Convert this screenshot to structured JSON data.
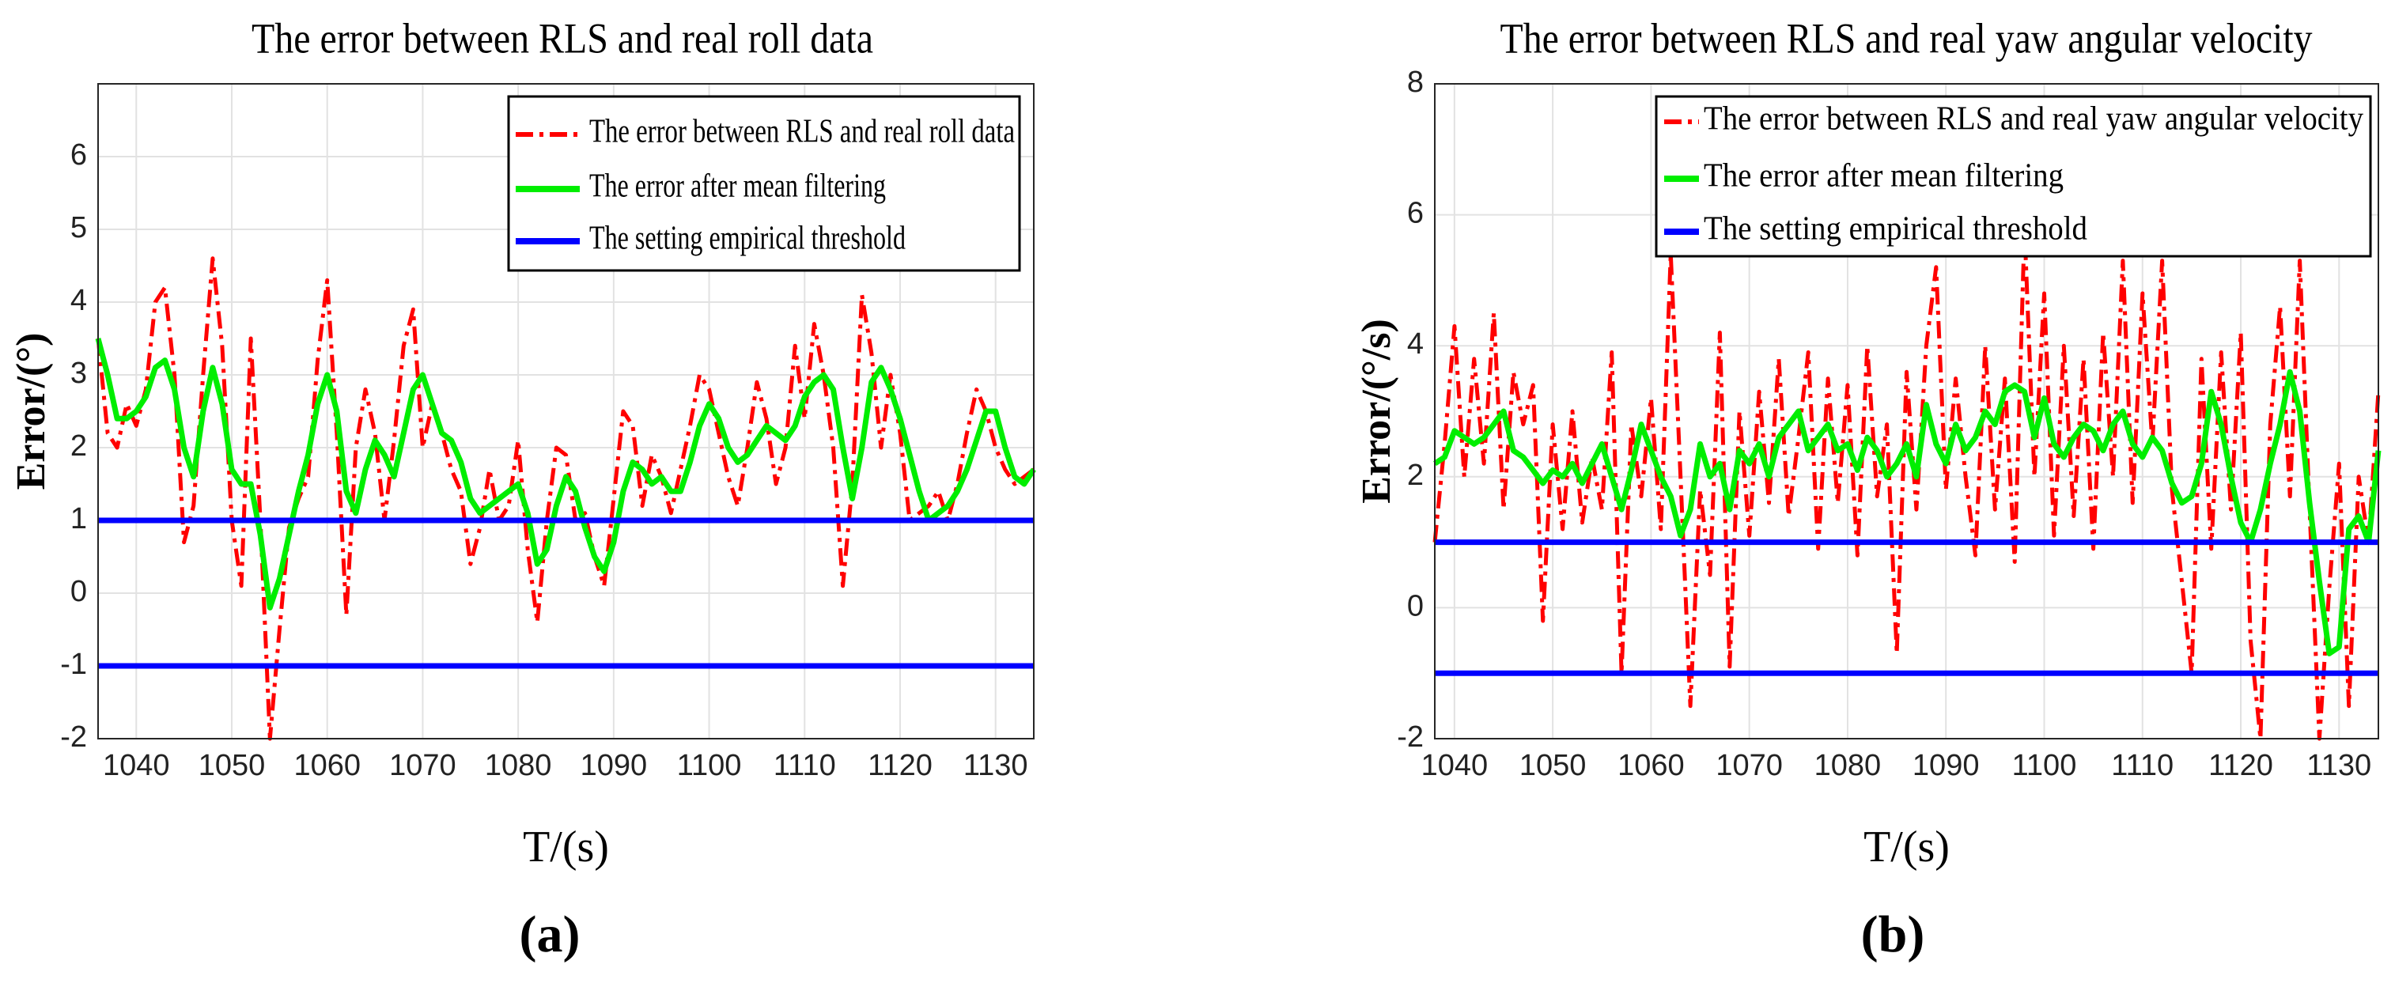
{
  "chart_data": [
    {
      "type": "line",
      "title": "The error between RLS and real roll data",
      "xlabel": "T/(s)",
      "ylabel": "Error/(°)",
      "panel": "(a)",
      "xlim": [
        1036,
        1134
      ],
      "xticks": [
        1040,
        1050,
        1060,
        1070,
        1080,
        1090,
        1100,
        1110,
        1120,
        1130
      ],
      "ylim": [
        -2,
        7
      ],
      "yticks": [
        -2,
        -1,
        0,
        1,
        2,
        3,
        4,
        5,
        6
      ],
      "grid": true,
      "x": [
        1036,
        1037,
        1038,
        1039,
        1040,
        1041,
        1042,
        1043,
        1044,
        1045,
        1046,
        1047,
        1048,
        1049,
        1050,
        1051,
        1052,
        1053,
        1054,
        1055,
        1056,
        1057,
        1058,
        1059,
        1060,
        1061,
        1062,
        1063,
        1064,
        1065,
        1066,
        1067,
        1068,
        1069,
        1070,
        1071,
        1072,
        1073,
        1074,
        1075,
        1076,
        1077,
        1078,
        1079,
        1080,
        1081,
        1082,
        1083,
        1084,
        1085,
        1086,
        1087,
        1088,
        1089,
        1090,
        1091,
        1092,
        1093,
        1094,
        1095,
        1096,
        1097,
        1098,
        1099,
        1100,
        1101,
        1102,
        1103,
        1104,
        1105,
        1106,
        1107,
        1108,
        1109,
        1110,
        1111,
        1112,
        1113,
        1114,
        1115,
        1116,
        1117,
        1118,
        1119,
        1120,
        1121,
        1122,
        1123,
        1124,
        1125,
        1126,
        1127,
        1128,
        1129,
        1130,
        1131,
        1132,
        1133,
        1134
      ],
      "series": [
        {
          "name": "The error between RLS and real roll data",
          "color": "#ff0000",
          "dash": true,
          "values": [
            3.5,
            2.2,
            2.0,
            2.6,
            2.3,
            2.8,
            4.0,
            4.2,
            3.0,
            0.7,
            1.2,
            3.0,
            4.6,
            3.4,
            1.0,
            0.1,
            3.5,
            1.0,
            -2.0,
            -0.5,
            0.9,
            1.3,
            1.6,
            3.2,
            4.3,
            2.2,
            -0.3,
            2.0,
            2.8,
            2.2,
            1.0,
            2.1,
            3.4,
            3.9,
            2.0,
            2.6,
            2.2,
            1.7,
            1.4,
            0.4,
            0.9,
            1.7,
            1.0,
            1.2,
            2.1,
            0.6,
            -0.4,
            1.0,
            2.0,
            1.9,
            1.0,
            1.1,
            0.5,
            0.1,
            1.3,
            2.5,
            2.3,
            1.2,
            1.9,
            1.6,
            1.1,
            1.7,
            2.3,
            3.0,
            2.8,
            2.2,
            1.6,
            1.2,
            2.0,
            2.9,
            2.4,
            1.5,
            2.0,
            3.4,
            2.4,
            3.7,
            3.0,
            2.0,
            0.1,
            1.5,
            4.1,
            3.3,
            2.0,
            3.0,
            2.2,
            1.0,
            1.1,
            1.2,
            1.4,
            1.0,
            1.5,
            2.2,
            2.8,
            2.5,
            2.0,
            1.7,
            1.5,
            1.6,
            1.7
          ]
        },
        {
          "name": "The error after mean filtering",
          "color": "#00ee00",
          "values": [
            3.5,
            3.0,
            2.4,
            2.4,
            2.5,
            2.7,
            3.1,
            3.2,
            2.8,
            2.0,
            1.6,
            2.5,
            3.1,
            2.6,
            1.7,
            1.5,
            1.5,
            0.8,
            -0.2,
            0.2,
            0.8,
            1.4,
            1.9,
            2.6,
            3.0,
            2.5,
            1.4,
            1.1,
            1.7,
            2.1,
            1.9,
            1.6,
            2.2,
            2.8,
            3.0,
            2.6,
            2.2,
            2.1,
            1.8,
            1.3,
            1.1,
            1.2,
            1.3,
            1.4,
            1.5,
            1.1,
            0.4,
            0.6,
            1.2,
            1.6,
            1.4,
            0.9,
            0.5,
            0.3,
            0.7,
            1.4,
            1.8,
            1.7,
            1.5,
            1.6,
            1.4,
            1.4,
            1.8,
            2.3,
            2.6,
            2.4,
            2.0,
            1.8,
            1.9,
            2.1,
            2.3,
            2.2,
            2.1,
            2.3,
            2.7,
            2.9,
            3.0,
            2.8,
            2.0,
            1.3,
            2.0,
            2.9,
            3.1,
            2.8,
            2.4,
            1.9,
            1.4,
            1.0,
            1.1,
            1.2,
            1.4,
            1.7,
            2.1,
            2.5,
            2.5,
            2.0,
            1.6,
            1.5,
            1.7
          ]
        },
        {
          "name": "The setting empirical threshold",
          "color": "#0000ff",
          "hlines": [
            1,
            -1
          ]
        }
      ]
    },
    {
      "type": "line",
      "title": "The error between RLS and real yaw angular velocity",
      "xlabel": "T/(s)",
      "ylabel": "Error/(°/s)",
      "panel": "(b)",
      "xlim": [
        1038,
        1134
      ],
      "xticks": [
        1040,
        1050,
        1060,
        1070,
        1080,
        1090,
        1100,
        1110,
        1120,
        1130
      ],
      "ylim": [
        -2,
        8
      ],
      "yticks": [
        -2,
        0,
        2,
        4,
        6,
        8
      ],
      "grid": true,
      "x": [
        1038,
        1039,
        1040,
        1041,
        1042,
        1043,
        1044,
        1045,
        1046,
        1047,
        1048,
        1049,
        1050,
        1051,
        1052,
        1053,
        1054,
        1055,
        1056,
        1057,
        1058,
        1059,
        1060,
        1061,
        1062,
        1063,
        1064,
        1065,
        1066,
        1067,
        1068,
        1069,
        1070,
        1071,
        1072,
        1073,
        1074,
        1075,
        1076,
        1077,
        1078,
        1079,
        1080,
        1081,
        1082,
        1083,
        1084,
        1085,
        1086,
        1087,
        1088,
        1089,
        1090,
        1091,
        1092,
        1093,
        1094,
        1095,
        1096,
        1097,
        1098,
        1099,
        1100,
        1101,
        1102,
        1103,
        1104,
        1105,
        1106,
        1107,
        1108,
        1109,
        1110,
        1111,
        1112,
        1113,
        1114,
        1115,
        1116,
        1117,
        1118,
        1119,
        1120,
        1121,
        1122,
        1123,
        1124,
        1125,
        1126,
        1127,
        1128,
        1129,
        1130,
        1131,
        1132,
        1133,
        1134
      ],
      "series": [
        {
          "name": "The error between RLS and real yaw angular velocity",
          "color": "#ff0000",
          "dash": true,
          "values": [
            1.0,
            2.5,
            4.3,
            2.0,
            3.8,
            2.2,
            4.5,
            1.5,
            3.6,
            2.8,
            3.4,
            -0.2,
            2.8,
            1.2,
            3.0,
            1.3,
            2.3,
            1.5,
            3.9,
            -1.0,
            2.8,
            1.7,
            3.2,
            1.2,
            5.4,
            2.0,
            -1.5,
            1.8,
            0.5,
            4.2,
            -0.9,
            3.0,
            1.1,
            3.3,
            1.6,
            3.8,
            1.4,
            2.6,
            3.9,
            0.9,
            3.5,
            1.6,
            3.4,
            0.8,
            4.0,
            1.7,
            2.8,
            -0.7,
            3.6,
            1.5,
            4.0,
            5.2,
            1.8,
            3.5,
            2.0,
            0.8,
            4.0,
            1.5,
            3.5,
            0.7,
            5.8,
            2.0,
            4.8,
            1.1,
            4.0,
            1.4,
            3.8,
            0.9,
            4.2,
            2.0,
            5.3,
            1.6,
            4.8,
            2.5,
            5.3,
            1.8,
            0.4,
            -1.0,
            3.8,
            0.9,
            3.9,
            1.5,
            4.2,
            -0.5,
            -2.0,
            2.8,
            4.6,
            1.7,
            5.3,
            1.5,
            -2.0,
            0.3,
            2.2,
            -1.5,
            2.0,
            1.0,
            3.3
          ]
        },
        {
          "name": "The error after mean filtering",
          "color": "#00ee00",
          "values": [
            2.2,
            2.3,
            2.7,
            2.6,
            2.5,
            2.6,
            2.8,
            3.0,
            2.4,
            2.3,
            2.1,
            1.9,
            2.1,
            2.0,
            2.2,
            1.9,
            2.2,
            2.5,
            2.0,
            1.5,
            2.1,
            2.8,
            2.4,
            2.0,
            1.7,
            1.1,
            1.5,
            2.5,
            2.0,
            2.2,
            1.5,
            2.4,
            2.2,
            2.5,
            2.0,
            2.6,
            2.8,
            3.0,
            2.4,
            2.6,
            2.8,
            2.4,
            2.5,
            2.1,
            2.6,
            2.4,
            2.0,
            2.2,
            2.5,
            2.0,
            3.1,
            2.5,
            2.2,
            2.8,
            2.4,
            2.6,
            3.0,
            2.8,
            3.3,
            3.4,
            3.3,
            2.6,
            3.2,
            2.5,
            2.3,
            2.6,
            2.8,
            2.7,
            2.4,
            2.8,
            3.0,
            2.5,
            2.3,
            2.6,
            2.4,
            1.9,
            1.6,
            1.7,
            2.2,
            3.3,
            2.8,
            2.0,
            1.3,
            1.0,
            1.5,
            2.2,
            2.8,
            3.6,
            3.0,
            1.6,
            0.4,
            -0.7,
            -0.6,
            1.2,
            1.4,
            1.0,
            2.4
          ]
        },
        {
          "name": "The setting empirical threshold",
          "color": "#0000ff",
          "hlines": [
            1,
            -1
          ]
        }
      ]
    }
  ]
}
